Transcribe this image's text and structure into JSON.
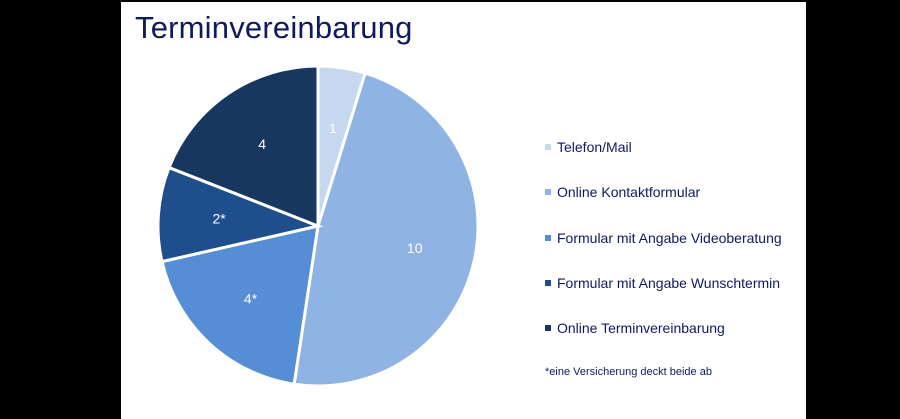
{
  "title": "Terminvereinbarung",
  "footnote": "*eine Versicherung deckt beide ab",
  "legend": [
    {
      "label": "Telefon/Mail",
      "color": "#c5d8f0"
    },
    {
      "label": "Online Kontaktformular",
      "color": "#8fb4e3"
    },
    {
      "label": "Formular mit Angabe Videoberatung",
      "color": "#558ed5"
    },
    {
      "label": "Formular mit Angabe Wunschtermin",
      "color": "#1f4e8c"
    },
    {
      "label": "Online Terminvereinbarung",
      "color": "#17375e"
    }
  ],
  "chart_data": {
    "type": "pie",
    "title": "Terminvereinbarung",
    "categories": [
      "Telefon/Mail",
      "Online Kontaktformular",
      "Formular mit Angabe Videoberatung",
      "Formular mit Angabe Wunschtermin",
      "Online Terminvereinbarung"
    ],
    "values": [
      1,
      10,
      4,
      2,
      4
    ],
    "data_labels": [
      "1",
      "10",
      "4*",
      "2*",
      "4"
    ],
    "colors": [
      "#c5d8f0",
      "#8fb4e3",
      "#558ed5",
      "#1f4e8c",
      "#17375e"
    ],
    "legend_position": "right",
    "annotation": "*eine Versicherung deckt beide ab"
  }
}
